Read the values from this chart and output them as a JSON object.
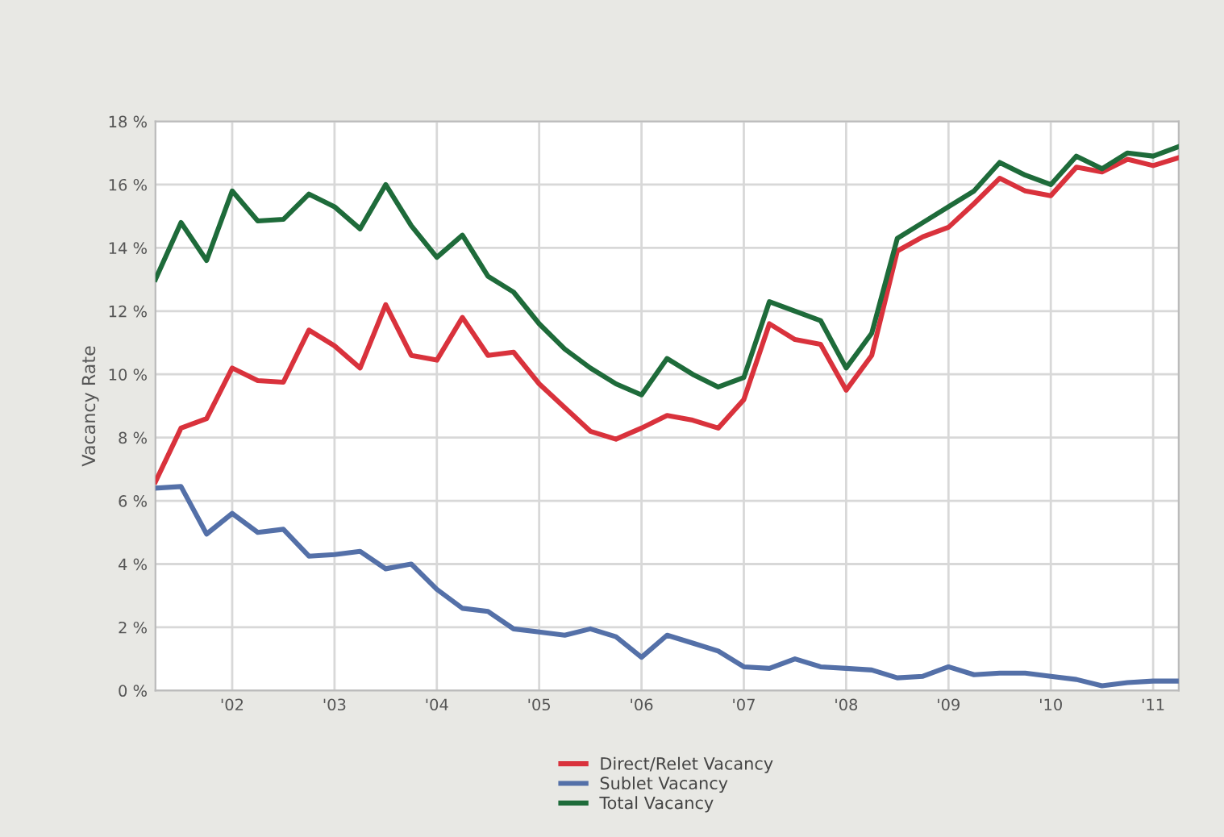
{
  "chart_data": {
    "type": "line",
    "ylabel": "Vacancy Rate",
    "x": [
      2001.25,
      2001.5,
      2001.75,
      2002,
      2002.25,
      2002.5,
      2002.75,
      2003,
      2003.25,
      2003.5,
      2003.75,
      2004,
      2004.25,
      2004.5,
      2004.75,
      2005,
      2005.25,
      2005.5,
      2005.75,
      2006,
      2006.25,
      2006.5,
      2006.75,
      2007,
      2007.25,
      2007.5,
      2007.75,
      2008,
      2008.25,
      2008.5,
      2008.75,
      2009,
      2009.25,
      2009.5,
      2009.75,
      2010,
      2010.25,
      2010.5,
      2010.75,
      2011,
      2011.25
    ],
    "series": [
      {
        "name": "Direct/Relet Vacancy",
        "color": "#d9323c",
        "values": [
          6.6,
          8.3,
          8.6,
          10.2,
          9.8,
          9.75,
          11.4,
          10.9,
          10.2,
          12.2,
          10.6,
          10.45,
          11.8,
          10.6,
          10.7,
          9.7,
          8.95,
          8.2,
          7.95,
          8.3,
          8.7,
          8.55,
          8.3,
          9.2,
          11.6,
          11.1,
          10.95,
          9.5,
          10.6,
          13.9,
          14.35,
          14.65,
          15.4,
          16.2,
          15.8,
          15.65,
          16.55,
          16.4,
          16.8,
          16.6,
          16.85
        ]
      },
      {
        "name": "Sublet Vacancy",
        "color": "#5470a8",
        "values": [
          6.4,
          6.45,
          4.95,
          5.6,
          5.0,
          5.1,
          4.25,
          4.3,
          4.4,
          3.85,
          4.0,
          3.2,
          2.6,
          2.5,
          1.95,
          1.85,
          1.75,
          1.95,
          1.7,
          1.05,
          1.75,
          1.5,
          1.25,
          0.75,
          0.7,
          1.0,
          0.75,
          0.7,
          0.65,
          0.4,
          0.45,
          0.75,
          0.5,
          0.55,
          0.55,
          0.45,
          0.35,
          0.15,
          0.25,
          0.3,
          0.3
        ]
      },
      {
        "name": "Total Vacancy",
        "color": "#1e6b3a",
        "values": [
          13.0,
          14.8,
          13.6,
          15.8,
          14.85,
          14.9,
          15.7,
          15.3,
          14.6,
          16.0,
          14.7,
          13.7,
          14.4,
          13.1,
          12.6,
          11.6,
          10.8,
          10.2,
          9.7,
          9.35,
          10.5,
          10.0,
          9.6,
          9.9,
          12.3,
          12.0,
          11.7,
          10.2,
          11.3,
          14.3,
          14.8,
          15.3,
          15.8,
          16.7,
          16.3,
          16.0,
          16.9,
          16.5,
          17.0,
          16.9,
          17.2
        ]
      }
    ],
    "xlim": [
      2001.25,
      2011.25
    ],
    "xticks": [
      {
        "value": 2002,
        "label": "'02"
      },
      {
        "value": 2003,
        "label": "'03"
      },
      {
        "value": 2004,
        "label": "'04"
      },
      {
        "value": 2005,
        "label": "'05"
      },
      {
        "value": 2006,
        "label": "'06"
      },
      {
        "value": 2007,
        "label": "'07"
      },
      {
        "value": 2008,
        "label": "'08"
      },
      {
        "value": 2009,
        "label": "'09"
      },
      {
        "value": 2010,
        "label": "'10"
      },
      {
        "value": 2011,
        "label": "'11"
      }
    ],
    "ylim": [
      0,
      18
    ],
    "yticks": [
      {
        "value": 0,
        "label": "0 %"
      },
      {
        "value": 2,
        "label": "2 %"
      },
      {
        "value": 4,
        "label": "4 %"
      },
      {
        "value": 6,
        "label": "6 %"
      },
      {
        "value": 8,
        "label": "8 %"
      },
      {
        "value": 10,
        "label": "10 %"
      },
      {
        "value": 12,
        "label": "12 %"
      },
      {
        "value": 14,
        "label": "14 %"
      },
      {
        "value": 16,
        "label": "16 %"
      },
      {
        "value": 18,
        "label": "18 %"
      }
    ],
    "grid": true,
    "legend": "bottom",
    "marker": "none",
    "line_style": "solid"
  }
}
